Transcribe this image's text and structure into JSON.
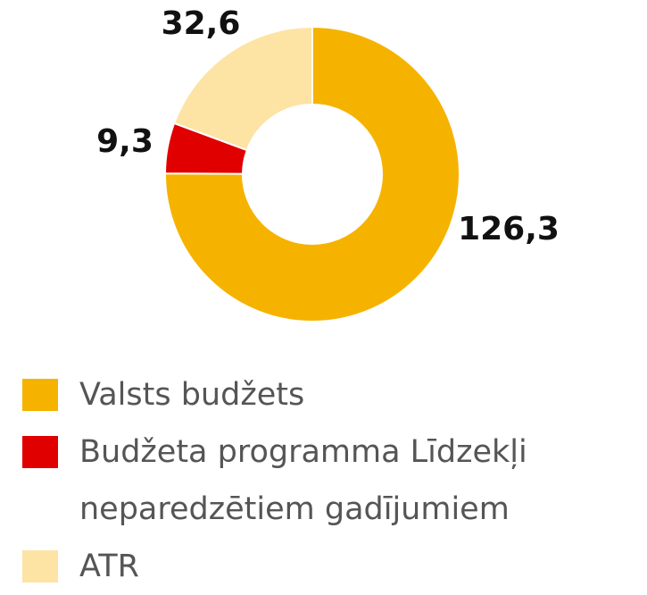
{
  "chart_data": {
    "type": "pie",
    "categories": [
      "Valsts budžets",
      "Budžeta programma Līdzekļi neparedzētiem gadījumiem",
      "ATR"
    ],
    "values": [
      126.3,
      9.3,
      32.6
    ],
    "value_labels": [
      "126,3",
      "9,3",
      "32,6"
    ],
    "colors": [
      "#f5b300",
      "#e00000",
      "#fde3a4"
    ],
    "donut": true
  }
}
